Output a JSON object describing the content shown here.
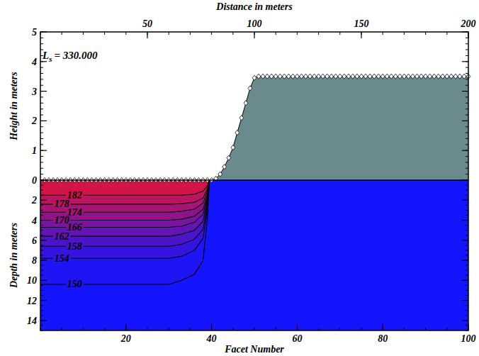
{
  "chart_data": {
    "type": "profile_contour",
    "x2_label": "Distance in meters",
    "x_label": "Facet Number",
    "y_label": "Height in meters",
    "depth_label": "Depth in meters",
    "xlim": [
      0,
      100
    ],
    "xticks": [
      20,
      40,
      60,
      80,
      100
    ],
    "x2lim": [
      0,
      200
    ],
    "x2ticks": [
      50,
      100,
      150,
      200
    ],
    "ylim": [
      0,
      5
    ],
    "yticks": [
      0,
      1,
      2,
      3,
      4,
      5
    ],
    "depth_lim": [
      0,
      15
    ],
    "depth_ticks": [
      2,
      4,
      6,
      8,
      10,
      12,
      14
    ],
    "annotation": {
      "symbol": "L",
      "subscript": "s",
      "text": "= 330.000"
    },
    "profile": {
      "color": "#6b8a8e",
      "marker": "diamond",
      "x": [
        1,
        2,
        3,
        4,
        5,
        6,
        7,
        8,
        9,
        10,
        11,
        12,
        13,
        14,
        15,
        16,
        17,
        18,
        19,
        20,
        21,
        22,
        23,
        24,
        25,
        26,
        27,
        28,
        29,
        30,
        31,
        32,
        33,
        34,
        35,
        36,
        37,
        38,
        39,
        40,
        41,
        42,
        43,
        44,
        45,
        46,
        47,
        48,
        49,
        50,
        51,
        52,
        53,
        54,
        55,
        56,
        57,
        58,
        59,
        60,
        61,
        62,
        63,
        64,
        65,
        66,
        67,
        68,
        69,
        70,
        71,
        72,
        73,
        74,
        75,
        76,
        77,
        78,
        79,
        80,
        81,
        82,
        83,
        84,
        85,
        86,
        87,
        88,
        89,
        90,
        91,
        92,
        93,
        94,
        95,
        96,
        97,
        98,
        99,
        100
      ],
      "values": [
        0,
        0,
        0,
        0,
        0,
        0,
        0,
        0,
        0,
        0,
        0,
        0,
        0,
        0,
        0,
        0,
        0,
        0,
        0,
        0,
        0,
        0,
        0,
        0,
        0,
        0,
        0,
        0,
        0,
        0,
        0,
        0,
        0,
        0,
        0,
        0,
        0,
        0,
        0,
        0,
        0.05,
        0.2,
        0.45,
        0.75,
        1.1,
        1.6,
        2.1,
        2.6,
        3.1,
        3.45,
        3.5,
        3.5,
        3.5,
        3.5,
        3.5,
        3.5,
        3.5,
        3.5,
        3.5,
        3.5,
        3.5,
        3.5,
        3.5,
        3.5,
        3.5,
        3.5,
        3.5,
        3.5,
        3.5,
        3.5,
        3.5,
        3.5,
        3.5,
        3.5,
        3.5,
        3.5,
        3.5,
        3.5,
        3.5,
        3.5,
        3.5,
        3.5,
        3.5,
        3.5,
        3.5,
        3.5,
        3.5,
        3.5,
        3.5,
        3.5,
        3.5,
        3.5,
        3.5,
        3.5,
        3.5,
        3.5,
        3.5,
        3.5,
        3.5,
        3.5
      ]
    },
    "color_range": [
      150,
      186
    ],
    "contours": [
      {
        "level": 182,
        "x": [
          0,
          30,
          33,
          36,
          38,
          39,
          39.5
        ],
        "depth": [
          1.5,
          1.5,
          1.5,
          1.4,
          1.1,
          0.6,
          0
        ]
      },
      {
        "level": 178,
        "x": [
          0,
          30,
          33,
          36,
          38,
          39,
          39.5
        ],
        "depth": [
          2.4,
          2.4,
          2.35,
          2.2,
          1.8,
          0.9,
          0
        ]
      },
      {
        "level": 174,
        "x": [
          0,
          30,
          33,
          36,
          38,
          39,
          39.5
        ],
        "depth": [
          3.2,
          3.2,
          3.1,
          2.9,
          2.3,
          1.2,
          0
        ]
      },
      {
        "level": 170,
        "x": [
          0,
          30,
          33,
          36,
          38,
          39,
          39.5
        ],
        "depth": [
          4.0,
          4.0,
          3.9,
          3.6,
          2.9,
          1.5,
          0
        ]
      },
      {
        "level": 166,
        "x": [
          0,
          30,
          33,
          36,
          38,
          39,
          39.5
        ],
        "depth": [
          4.7,
          4.7,
          4.6,
          4.2,
          3.4,
          1.8,
          0
        ]
      },
      {
        "level": 162,
        "x": [
          0,
          30,
          33,
          36,
          38,
          39,
          39.5
        ],
        "depth": [
          5.6,
          5.6,
          5.4,
          5.0,
          4.1,
          2.1,
          0
        ]
      },
      {
        "level": 158,
        "x": [
          0,
          30,
          33,
          36,
          38,
          39,
          39.5
        ],
        "depth": [
          6.6,
          6.6,
          6.4,
          5.9,
          4.9,
          2.5,
          0
        ]
      },
      {
        "level": 154,
        "x": [
          0,
          30,
          33,
          36,
          38,
          39,
          39.5
        ],
        "depth": [
          7.8,
          7.8,
          7.6,
          7.0,
          5.8,
          3.0,
          0
        ]
      },
      {
        "level": 150,
        "x": [
          0,
          30,
          33,
          36,
          38,
          39,
          39.5
        ],
        "depth": [
          10.4,
          10.4,
          10.0,
          9.4,
          8.0,
          4.0,
          0
        ]
      }
    ]
  }
}
